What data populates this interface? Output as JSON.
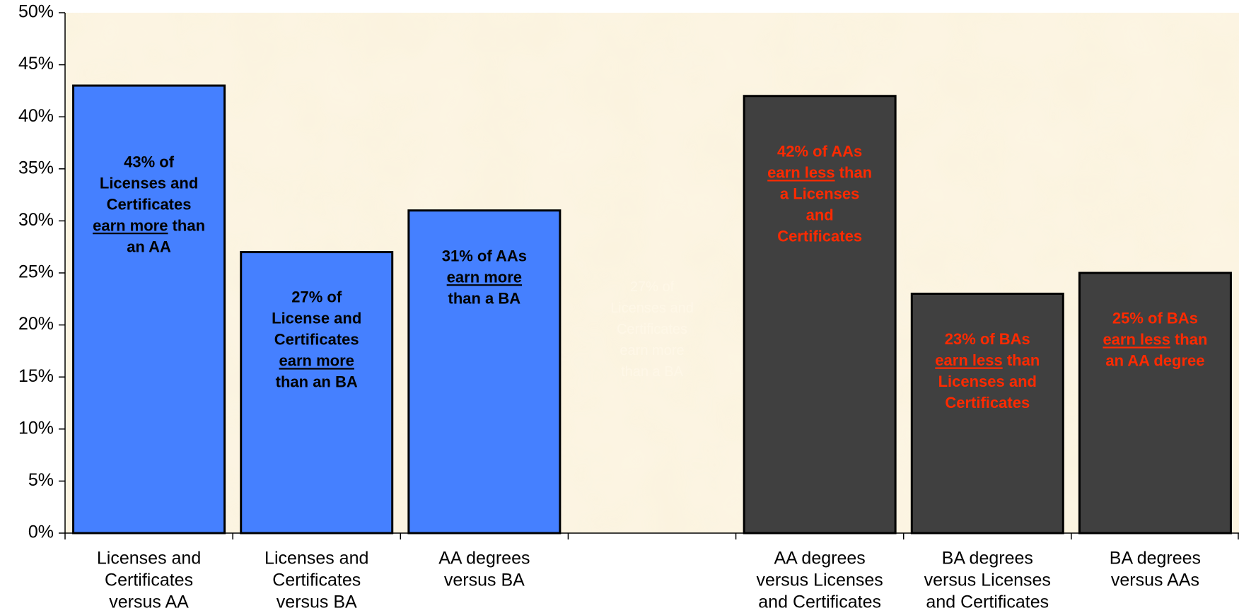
{
  "colors": {
    "plot_background": "#fbf3df",
    "series_blue": "#4580ff",
    "series_dark": "#404040",
    "label_blue_bars": "#000000",
    "label_dark_bars": "#ff2a00",
    "axis": "#000000"
  },
  "chart_data": {
    "type": "bar",
    "ylim": [
      0,
      50
    ],
    "y_ticks": [
      "0%",
      "5%",
      "10%",
      "15%",
      "20%",
      "25%",
      "30%",
      "35%",
      "40%",
      "45%",
      "50%"
    ],
    "grid": false,
    "categories": [
      [
        "Licenses and",
        "Certificates",
        "versus AA"
      ],
      [
        "Licenses and",
        "Certificates",
        "versus BA"
      ],
      [
        "AA degrees",
        "versus BA"
      ],
      [],
      [
        "AA degrees",
        "versus Licenses",
        "and Certificates"
      ],
      [
        "BA degrees",
        "versus Licenses",
        "and Certificates"
      ],
      [
        "BA degrees",
        "versus AAs"
      ]
    ],
    "values": [
      43,
      27,
      31,
      null,
      42,
      23,
      25
    ],
    "bar_groups": [
      "blue",
      "blue",
      "blue",
      "none",
      "dark",
      "dark",
      "dark"
    ],
    "annotations": [
      [
        [
          {
            "t": "43% of"
          }
        ],
        [
          {
            "t": "Licenses and"
          }
        ],
        [
          {
            "t": "Certificates"
          }
        ],
        [
          {
            "t": "earn more",
            "u": true
          },
          {
            "t": " than"
          }
        ],
        [
          {
            "t": "an AA"
          }
        ]
      ],
      [
        [
          {
            "t": "27% of"
          }
        ],
        [
          {
            "t": "License and"
          }
        ],
        [
          {
            "t": "Certificates"
          }
        ],
        [
          {
            "t": "earn more",
            "u": true
          }
        ],
        [
          {
            "t": "than an BA"
          }
        ]
      ],
      [
        [
          {
            "t": "31% of AAs"
          }
        ],
        [
          {
            "t": "earn more",
            "u": true
          }
        ],
        [
          {
            "t": "than a BA"
          }
        ]
      ],
      [
        [
          {
            "t": "27% of"
          }
        ],
        [
          {
            "t": "Licenses and"
          }
        ],
        [
          {
            "t": "Certificates"
          }
        ],
        [
          {
            "t": "earn more"
          }
        ],
        [
          {
            "t": "than a BA"
          }
        ]
      ],
      [
        [
          {
            "t": "42% of AAs"
          }
        ],
        [
          {
            "t": "earn less",
            "u": true
          },
          {
            "t": " than"
          }
        ],
        [
          {
            "t": "a Licenses"
          }
        ],
        [
          {
            "t": "and"
          }
        ],
        [
          {
            "t": "Certificates"
          }
        ]
      ],
      [
        [
          {
            "t": "23% of BAs"
          }
        ],
        [
          {
            "t": "earn less",
            "u": true
          },
          {
            "t": " than"
          }
        ],
        [
          {
            "t": "Licenses and"
          }
        ],
        [
          {
            "t": "Certificates"
          }
        ]
      ],
      [
        [
          {
            "t": "25% of BAs"
          }
        ],
        [
          {
            "t": "earn less",
            "u": true
          },
          {
            "t": " than"
          }
        ],
        [
          {
            "t": "an AA degree"
          }
        ]
      ]
    ]
  }
}
